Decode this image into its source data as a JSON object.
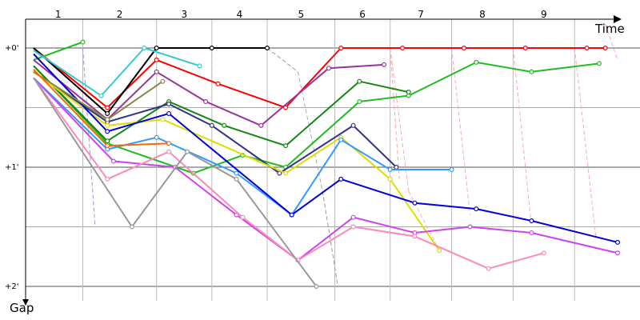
{
  "chart_data": {
    "type": "line",
    "xlabel": "Time",
    "ylabel": "Gap",
    "laps": [
      "1",
      "2",
      "3",
      "4",
      "5",
      "6",
      "7",
      "8",
      "9"
    ],
    "y_ticks": [
      {
        "label": "+0'",
        "value": 0
      },
      {
        "label": "+1'",
        "value": 1
      },
      {
        "label": "+2'",
        "value": 2
      }
    ],
    "x_range": [
      0,
      9.5
    ],
    "y_range": [
      -0.18,
      2.15
    ],
    "grid": true,
    "lap_boundaries": [
      0.8,
      2.0,
      2.9,
      3.8,
      4.9,
      5.8,
      6.8,
      7.8,
      8.8
    ],
    "pit_lines": [
      {
        "color": "#9999dd",
        "points": [
          [
            0.8,
            0
          ],
          [
            1.0,
            1.5
          ]
        ]
      },
      {
        "color": "#aaddaa",
        "points": [
          [
            2.0,
            0
          ],
          [
            2.0,
            0.3
          ]
        ]
      },
      {
        "color": "#bbbbbb",
        "points": [
          [
            2.9,
            0
          ],
          [
            2.9,
            0.3
          ]
        ]
      },
      {
        "color": "#999999",
        "points": [
          [
            3.8,
            0
          ],
          [
            4.3,
            0.2
          ]
        ]
      },
      {
        "color": "#aaaaaa",
        "points": [
          [
            4.3,
            0.2
          ],
          [
            4.7,
            1.2
          ]
        ]
      },
      {
        "color": "#999999",
        "points": [
          [
            4.7,
            1.2
          ],
          [
            4.95,
            2.0
          ]
        ]
      },
      {
        "color": "#ffaaaa",
        "points": [
          [
            5.8,
            0
          ],
          [
            6.1,
            1.2
          ]
        ]
      },
      {
        "color": "#ffaaaa",
        "points": [
          [
            6.8,
            0
          ],
          [
            7.1,
            1.4
          ]
        ]
      },
      {
        "color": "#ffaaaa",
        "points": [
          [
            7.8,
            0
          ],
          [
            8.1,
            1.5
          ]
        ]
      },
      {
        "color": "#ffaaaa",
        "points": [
          [
            8.8,
            0
          ],
          [
            9.15,
            1.6
          ]
        ]
      },
      {
        "color": "#ffaaaa",
        "points": [
          [
            9.3,
            -0.2
          ],
          [
            9.5,
            0.1
          ]
        ]
      },
      {
        "color": "#ffaaaa",
        "points": [
          [
            5.8,
            0
          ],
          [
            5.95,
            1.1
          ]
        ]
      },
      {
        "color": "#ffaaaa",
        "points": [
          [
            6.1,
            1.2
          ],
          [
            6.6,
            1.7
          ]
        ]
      }
    ],
    "series": [
      {
        "color": "#ff0000",
        "points": [
          [
            0,
            0
          ],
          [
            1.2,
            0.5
          ],
          [
            2.0,
            0.1
          ],
          [
            3.0,
            0.3
          ],
          [
            4.1,
            0.5
          ],
          [
            5.0,
            0
          ],
          [
            6.0,
            0
          ],
          [
            7.0,
            0
          ],
          [
            8.0,
            0
          ],
          [
            9.0,
            0
          ],
          [
            9.3,
            0
          ]
        ]
      },
      {
        "color": "#000000",
        "points": [
          [
            0,
            0
          ],
          [
            1.2,
            0.55
          ],
          [
            2.0,
            0
          ],
          [
            2.9,
            0
          ],
          [
            3.8,
            0
          ]
        ]
      },
      {
        "color": "#22bb22",
        "points": [
          [
            0,
            0.1
          ],
          [
            0.8,
            -0.05
          ]
        ]
      },
      {
        "color": "#22bb22",
        "points": [
          [
            0,
            0.15
          ],
          [
            1.2,
            0.8
          ],
          [
            2.6,
            1.05
          ],
          [
            3.4,
            0.9
          ],
          [
            4.1,
            1.0
          ],
          [
            5.3,
            0.45
          ],
          [
            6.1,
            0.4
          ],
          [
            7.2,
            0.12
          ],
          [
            8.1,
            0.2
          ],
          [
            9.2,
            0.13
          ]
        ]
      },
      {
        "color": "#33cccc",
        "points": [
          [
            0,
            0.02
          ],
          [
            1.1,
            0.4
          ],
          [
            1.8,
            0
          ],
          [
            2.7,
            0.15
          ]
        ]
      },
      {
        "color": "#993399",
        "points": [
          [
            0,
            0.1
          ],
          [
            1.2,
            0.6
          ],
          [
            2.0,
            0.2
          ],
          [
            2.8,
            0.45
          ],
          [
            3.7,
            0.65
          ],
          [
            4.8,
            0.17
          ],
          [
            5.7,
            0.14
          ]
        ]
      },
      {
        "color": "#118811",
        "points": [
          [
            0,
            0.15
          ],
          [
            1.2,
            0.78
          ],
          [
            2.2,
            0.45
          ],
          [
            3.1,
            0.65
          ],
          [
            4.1,
            0.82
          ],
          [
            5.3,
            0.28
          ],
          [
            6.1,
            0.37
          ]
        ]
      },
      {
        "color": "#333388",
        "points": [
          [
            0,
            0.2
          ],
          [
            1.2,
            0.62
          ],
          [
            2.2,
            0.47
          ],
          [
            2.9,
            0.65
          ],
          [
            4.0,
            1.05
          ],
          [
            5.2,
            0.65
          ],
          [
            5.9,
            1.0
          ]
        ]
      },
      {
        "color": "#dddd00",
        "points": [
          [
            0,
            0.2
          ],
          [
            1.2,
            0.65
          ],
          [
            2.1,
            0.6
          ],
          [
            4.1,
            1.05
          ],
          [
            5.0,
            0.75
          ],
          [
            5.8,
            1.1
          ],
          [
            6.6,
            1.7
          ]
        ]
      },
      {
        "color": "#3399ff",
        "points": [
          [
            0,
            0.25
          ],
          [
            1.2,
            0.85
          ],
          [
            2.0,
            0.75
          ],
          [
            3.3,
            1.05
          ],
          [
            4.2,
            1.4
          ],
          [
            5.0,
            0.77
          ],
          [
            5.8,
            1.02
          ],
          [
            6.8,
            1.02
          ]
        ]
      },
      {
        "color": "#0000dd",
        "points": [
          [
            0,
            0.05
          ],
          [
            1.2,
            0.7
          ],
          [
            2.2,
            0.55
          ],
          [
            4.2,
            1.4
          ],
          [
            5.0,
            1.1
          ],
          [
            6.2,
            1.3
          ],
          [
            7.2,
            1.35
          ],
          [
            8.1,
            1.45
          ],
          [
            9.5,
            1.63
          ]
        ]
      },
      {
        "color": "#cc44ee",
        "points": [
          [
            0,
            0.25
          ],
          [
            1.3,
            0.95
          ],
          [
            2.3,
            1.0
          ],
          [
            3.3,
            1.4
          ],
          [
            4.3,
            1.78
          ],
          [
            5.2,
            1.42
          ],
          [
            6.2,
            1.55
          ],
          [
            7.1,
            1.5
          ],
          [
            8.1,
            1.55
          ],
          [
            9.5,
            1.72
          ]
        ]
      },
      {
        "color": "#ff88bb",
        "points": [
          [
            0,
            0.25
          ],
          [
            1.2,
            1.1
          ],
          [
            2.2,
            0.87
          ],
          [
            3.4,
            1.42
          ],
          [
            4.3,
            1.78
          ],
          [
            5.2,
            1.5
          ],
          [
            6.2,
            1.58
          ],
          [
            7.4,
            1.85
          ],
          [
            8.3,
            1.72
          ]
        ]
      },
      {
        "color": "#999999",
        "points": [
          [
            0,
            0.25
          ],
          [
            1.6,
            1.5
          ],
          [
            2.5,
            0.87
          ],
          [
            3.3,
            1.1
          ],
          [
            4.6,
            2.0
          ]
        ]
      },
      {
        "color": "#888844",
        "points": [
          [
            0,
            0.2
          ],
          [
            1.2,
            0.6
          ],
          [
            2.1,
            0.28
          ]
        ]
      },
      {
        "color": "#ff6600",
        "points": [
          [
            0,
            0.18
          ],
          [
            1.2,
            0.82
          ],
          [
            2.2,
            0.8
          ]
        ]
      }
    ]
  }
}
